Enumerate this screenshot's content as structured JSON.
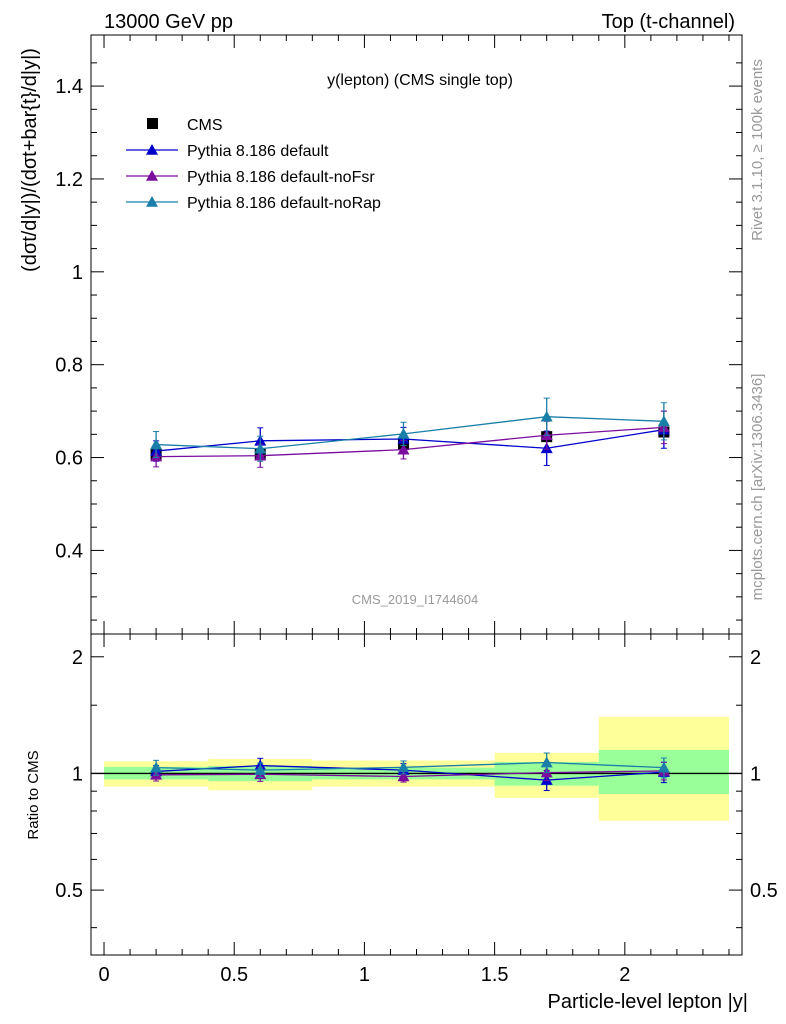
{
  "header": {
    "left": "13000 GeV pp",
    "right": "Top (t-channel)"
  },
  "side": {
    "rivet": "Rivet 3.1.10, ≥ 100k events",
    "mcplots": "mcplots.cern.ch [arXiv:1306.3436]"
  },
  "chart_data": [
    {
      "type": "scatter",
      "title": "y(lepton) (CMS single top)",
      "watermark": "CMS_2019_I1744604",
      "ylabel": "(dσt/d|y|)/(dσt+bar{t}/d|y|)",
      "xlim": [
        -0.05,
        2.45
      ],
      "ylim": [
        0.22,
        1.51
      ],
      "yticks": [
        0.4,
        0.6,
        0.8,
        1,
        1.2,
        1.4
      ],
      "legend_position": "top-left",
      "x": [
        0.2,
        0.6,
        1.15,
        1.7,
        2.15
      ],
      "bins": [
        [
          0,
          0.4
        ],
        [
          0.4,
          0.8
        ],
        [
          0.8,
          1.5
        ],
        [
          1.5,
          1.9
        ],
        [
          1.9,
          2.4
        ]
      ],
      "series": [
        {
          "name": "CMS",
          "marker": "square",
          "color": "#000000",
          "values": [
            0.607,
            0.607,
            0.628,
            0.645,
            0.655
          ],
          "errors": [
            0,
            0,
            0,
            0,
            0
          ]
        },
        {
          "name": "Pythia 8.186 default",
          "marker": "triangle",
          "color": "#0000cc",
          "values": [
            0.614,
            0.636,
            0.64,
            0.62,
            0.66
          ],
          "errors": [
            0.022,
            0.028,
            0.025,
            0.037,
            0.04
          ]
        },
        {
          "name": "Pythia 8.186 default-noFsr",
          "marker": "triangle",
          "color": "#7b0d9e",
          "values": [
            0.602,
            0.604,
            0.617,
            0.648,
            0.665
          ],
          "errors": [
            0.022,
            0.025,
            0.02,
            0.03,
            0.035
          ]
        },
        {
          "name": "Pythia 8.186 default-noRap",
          "marker": "triangle",
          "color": "#1a7fa8",
          "values": [
            0.628,
            0.619,
            0.651,
            0.688,
            0.678
          ],
          "errors": [
            0.028,
            0.027,
            0.025,
            0.04,
            0.04
          ]
        }
      ]
    },
    {
      "type": "scatter",
      "ylabel": "Ratio to CMS",
      "xlabel": "Particle-level lepton |y|",
      "xlim": [
        -0.05,
        2.45
      ],
      "ylim": [
        0.34,
        2.29
      ],
      "yscale": "log",
      "yticks": [
        0.5,
        1,
        2
      ],
      "xticks": [
        0,
        0.5,
        1,
        1.5,
        2
      ],
      "x": [
        0.2,
        0.6,
        1.15,
        1.7,
        2.15
      ],
      "bands": {
        "inner_color": "#99ff99",
        "outer_color": "#ffff99",
        "inner": [
          [
            0.965,
            1.04
          ],
          [
            0.955,
            1.045
          ],
          [
            0.965,
            1.035
          ],
          [
            0.93,
            1.07
          ],
          [
            0.885,
            1.15
          ]
        ],
        "outer": [
          [
            0.925,
            1.075
          ],
          [
            0.905,
            1.09
          ],
          [
            0.925,
            1.08
          ],
          [
            0.865,
            1.13
          ],
          [
            0.755,
            1.4
          ]
        ]
      },
      "series": [
        {
          "name": "Pythia 8.186 default",
          "color": "#0000cc",
          "values": [
            1.012,
            1.048,
            1.02,
            0.961,
            1.008
          ],
          "errors": [
            0.036,
            0.046,
            0.04,
            0.057,
            0.061
          ]
        },
        {
          "name": "Pythia 8.186 default-noFsr",
          "color": "#7b0d9e",
          "values": [
            0.992,
            0.995,
            0.982,
            1.005,
            1.015
          ],
          "errors": [
            0.036,
            0.041,
            0.032,
            0.047,
            0.053
          ]
        },
        {
          "name": "Pythia 8.186 default-noRap",
          "color": "#1a7fa8",
          "values": [
            1.035,
            1.02,
            1.037,
            1.067,
            1.035
          ],
          "errors": [
            0.046,
            0.044,
            0.04,
            0.062,
            0.061
          ]
        }
      ]
    }
  ]
}
